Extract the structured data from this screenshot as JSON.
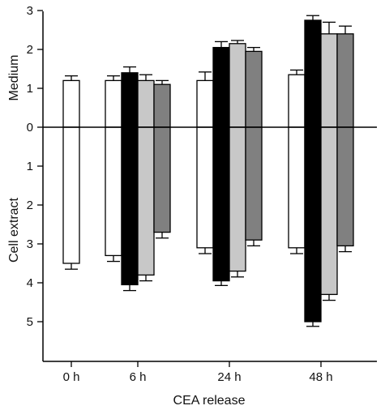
{
  "chart_data": {
    "type": "bar",
    "orientation": "bidirectional-vertical",
    "categories": [
      "0 h",
      "6 h",
      "24 h",
      "48 h"
    ],
    "xlabel": "CEA release",
    "ylabel_top": "Medium",
    "ylabel_bottom": "Cell extract",
    "ylim_top": [
      0,
      3
    ],
    "ylim_bottom": [
      0,
      6
    ],
    "yticks_top": [
      "3",
      "2",
      "1",
      "0"
    ],
    "yticks_bottom": [
      "1",
      "2",
      "3",
      "4",
      "5"
    ],
    "series": [
      {
        "color": "#ffffff",
        "medium": [
          1.2,
          1.2,
          1.2,
          1.35
        ],
        "medium_err": [
          0.12,
          0.12,
          0.22,
          0.12
        ],
        "cell": [
          3.5,
          3.3,
          3.1,
          3.1
        ],
        "cell_err": [
          0.15,
          0.15,
          0.15,
          0.15
        ]
      },
      {
        "color": "#000000",
        "medium": [
          null,
          1.4,
          2.05,
          2.75
        ],
        "medium_err": [
          null,
          0.15,
          0.15,
          0.12
        ],
        "cell": [
          null,
          4.05,
          3.95,
          5.0
        ],
        "cell_err": [
          null,
          0.15,
          0.12,
          0.12
        ]
      },
      {
        "color": "#c8c8c8",
        "medium": [
          null,
          1.2,
          2.15,
          2.4
        ],
        "medium_err": [
          null,
          0.15,
          0.08,
          0.3
        ],
        "cell": [
          null,
          3.8,
          3.7,
          4.3
        ],
        "cell_err": [
          null,
          0.15,
          0.15,
          0.15
        ]
      },
      {
        "color": "#808080",
        "medium": [
          null,
          1.1,
          1.95,
          2.4
        ],
        "medium_err": [
          null,
          0.1,
          0.1,
          0.2
        ],
        "cell": [
          null,
          2.7,
          2.9,
          3.05
        ],
        "cell_err": [
          null,
          0.15,
          0.15,
          0.15
        ]
      }
    ]
  }
}
